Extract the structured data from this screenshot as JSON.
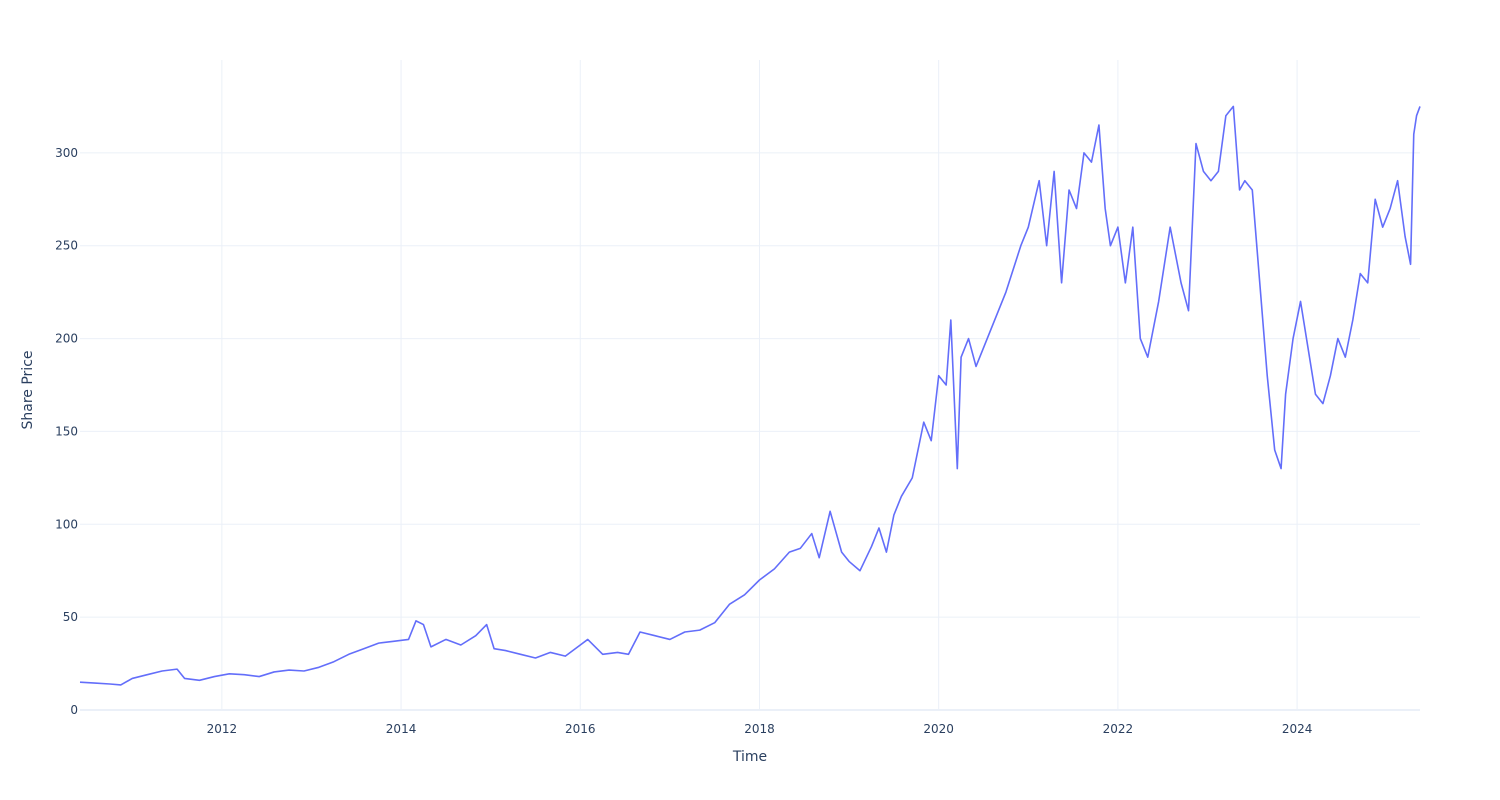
{
  "chart_data": {
    "type": "line",
    "xlabel": "Time",
    "ylabel": "Share Price",
    "x_tick_labels": [
      "2012",
      "2014",
      "2016",
      "2018",
      "2020",
      "2022",
      "2024"
    ],
    "y_tick_labels": [
      "0",
      "50",
      "100",
      "150",
      "200",
      "250",
      "300"
    ],
    "xlim": [
      "2010-06-01",
      "2025-05-15"
    ],
    "ylim": [
      0,
      350
    ],
    "grid": true,
    "legend": "none",
    "series": [
      {
        "color": "#636efa",
        "x": [
          "2010-06-01",
          "2010-08-01",
          "2010-10-01",
          "2010-11-15",
          "2011-01-01",
          "2011-03-01",
          "2011-05-01",
          "2011-07-01",
          "2011-08-01",
          "2011-10-01",
          "2011-12-01",
          "2012-02-01",
          "2012-04-01",
          "2012-06-01",
          "2012-08-01",
          "2012-10-01",
          "2012-12-01",
          "2013-02-01",
          "2013-04-01",
          "2013-06-01",
          "2013-08-01",
          "2013-10-01",
          "2013-12-01",
          "2014-02-01",
          "2014-03-01",
          "2014-04-01",
          "2014-05-01",
          "2014-07-01",
          "2014-09-01",
          "2014-11-01",
          "2014-12-15",
          "2015-01-15",
          "2015-03-01",
          "2015-05-01",
          "2015-07-01",
          "2015-09-01",
          "2015-11-01",
          "2016-01-01",
          "2016-02-01",
          "2016-04-01",
          "2016-06-01",
          "2016-07-15",
          "2016-09-01",
          "2016-11-01",
          "2017-01-01",
          "2017-03-01",
          "2017-05-01",
          "2017-07-01",
          "2017-09-01",
          "2017-11-01",
          "2018-01-01",
          "2018-03-01",
          "2018-05-01",
          "2018-06-15",
          "2018-08-01",
          "2018-09-01",
          "2018-10-15",
          "2018-12-01",
          "2019-01-01",
          "2019-02-15",
          "2019-04-01",
          "2019-05-01",
          "2019-06-01",
          "2019-07-01",
          "2019-08-01",
          "2019-09-15",
          "2019-11-01",
          "2019-12-01",
          "2020-01-01",
          "2020-02-01",
          "2020-02-20",
          "2020-03-16",
          "2020-04-01",
          "2020-05-01",
          "2020-06-01",
          "2020-08-01",
          "2020-10-01",
          "2020-12-01",
          "2021-01-01",
          "2021-02-15",
          "2021-03-15",
          "2021-04-15",
          "2021-05-15",
          "2021-06-15",
          "2021-07-15",
          "2021-08-15",
          "2021-09-15",
          "2021-10-15",
          "2021-11-10",
          "2021-12-01",
          "2022-01-01",
          "2022-02-01",
          "2022-03-01",
          "2022-04-01",
          "2022-05-01",
          "2022-06-15",
          "2022-08-01",
          "2022-09-15",
          "2022-10-15",
          "2022-11-15",
          "2022-12-15",
          "2023-01-15",
          "2023-02-15",
          "2023-03-15",
          "2023-04-15",
          "2023-05-10",
          "2023-06-01",
          "2023-07-01",
          "2023-08-01",
          "2023-09-01",
          "2023-10-01",
          "2023-10-27",
          "2023-11-15",
          "2023-12-15",
          "2024-01-15",
          "2024-02-15",
          "2024-03-15",
          "2024-04-15",
          "2024-05-15",
          "2024-06-15",
          "2024-07-15",
          "2024-08-15",
          "2024-09-15",
          "2024-10-15",
          "2024-11-15",
          "2024-12-15",
          "2025-01-15",
          "2025-02-15",
          "2025-03-15",
          "2025-04-07",
          "2025-04-20",
          "2025-05-01",
          "2025-05-15"
        ],
        "y": [
          15,
          14.5,
          14,
          13.5,
          17,
          19,
          21,
          22,
          17,
          16,
          18,
          19.5,
          19,
          18,
          20.5,
          21.5,
          21,
          23,
          26,
          30,
          33,
          36,
          37,
          38,
          48,
          46,
          34,
          38,
          35,
          40,
          46,
          33,
          32,
          30,
          28,
          31,
          29,
          35,
          38,
          30,
          31,
          30,
          42,
          40,
          38,
          42,
          43,
          47,
          57,
          62,
          70,
          76,
          85,
          87,
          95,
          82,
          107,
          85,
          80,
          75,
          88,
          98,
          85,
          105,
          115,
          125,
          155,
          145,
          180,
          175,
          210,
          130,
          190,
          200,
          185,
          205,
          225,
          250,
          260,
          285,
          250,
          290,
          230,
          280,
          270,
          300,
          295,
          315,
          270,
          250,
          260,
          230,
          260,
          200,
          190,
          220,
          260,
          230,
          215,
          305,
          290,
          285,
          290,
          320,
          325,
          280,
          285,
          280,
          230,
          180,
          140,
          130,
          170,
          200,
          220,
          195,
          170,
          165,
          180,
          200,
          190,
          210,
          235,
          230,
          275,
          260,
          270,
          285,
          255,
          240,
          310,
          320,
          325
        ]
      }
    ]
  }
}
